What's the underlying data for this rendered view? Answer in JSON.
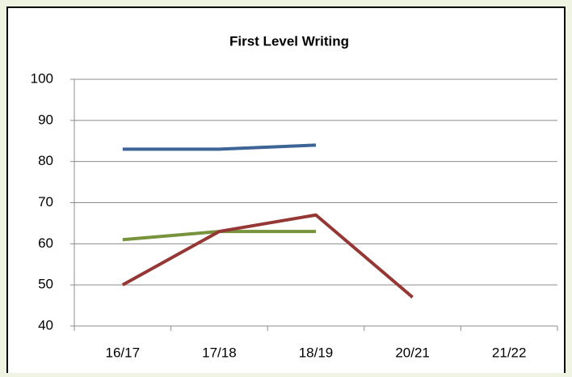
{
  "chart_data": {
    "type": "line",
    "title": "First Level Writing",
    "categories": [
      "16/17",
      "17/18",
      "18/19",
      "20/21",
      "21/22"
    ],
    "series": [
      {
        "color": "#3c6496",
        "values": [
          83,
          83,
          84,
          null,
          null
        ]
      },
      {
        "color": "#77933c",
        "values": [
          61,
          63,
          63,
          null,
          null
        ]
      },
      {
        "color": "#953735",
        "values": [
          50,
          63,
          67,
          47,
          null
        ]
      }
    ],
    "ylim": [
      40,
      100
    ],
    "yticks": [
      40,
      50,
      60,
      70,
      80,
      90,
      100
    ],
    "grid": true
  }
}
